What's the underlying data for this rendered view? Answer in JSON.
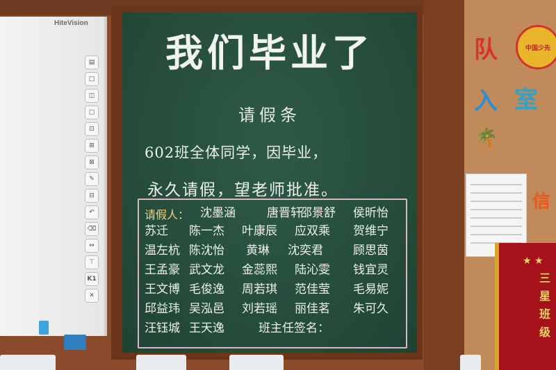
{
  "whiteboard": {
    "brand": "HiteVision",
    "tools": [
      "▤",
      "□",
      "◫",
      "▢",
      "⊡",
      "⊞",
      "⊠",
      "✎",
      "⊟",
      "↶",
      "⌫",
      "⇔",
      "⊤",
      "K1",
      "✕"
    ]
  },
  "chalkboard": {
    "title": "我们毕业了",
    "note_title": "请假条",
    "line1": "602班全体同学，因毕业，",
    "line2": "永久请假，望老师批准。",
    "roster_label": "请假人：",
    "roster": [
      [
        "",
        "沈墨涵",
        "唐晋轩",
        "邵景舒",
        "侯昕怡"
      ],
      [
        "苏迁",
        "陈一杰",
        "叶康辰",
        "应双乘",
        "贺维宁"
      ],
      [
        "温左杭",
        "陈沈怡",
        "黄琳",
        "沈奕君",
        "顾思茵"
      ],
      [
        "王孟豪",
        "武文龙",
        "金蕊熙",
        "陆沁雯",
        "钱宜灵"
      ],
      [
        "王文博",
        "毛俊逸",
        "周若琪",
        "范佳莹",
        "毛易妮"
      ],
      [
        "邱益玮",
        "吴泓邑",
        "刘若瑶",
        "丽佳茗",
        "朱可久"
      ],
      [
        "汪钰城",
        "王天逸",
        "班主任签名：",
        "",
        ""
      ]
    ]
  },
  "bulletin": {
    "char1": "队",
    "char2": "入",
    "char3": "室",
    "badge": "中国少先",
    "partial_char": "信",
    "banner_text": "三星班级",
    "stars": "★ ★"
  },
  "colors": {
    "chalkboard": "#2f5a48",
    "frame": "#6b351c",
    "chalk": "#eef2ec",
    "roster_border": "#d9b7c7",
    "roster_label": "#f2d37a",
    "banner": "#a5121a"
  }
}
